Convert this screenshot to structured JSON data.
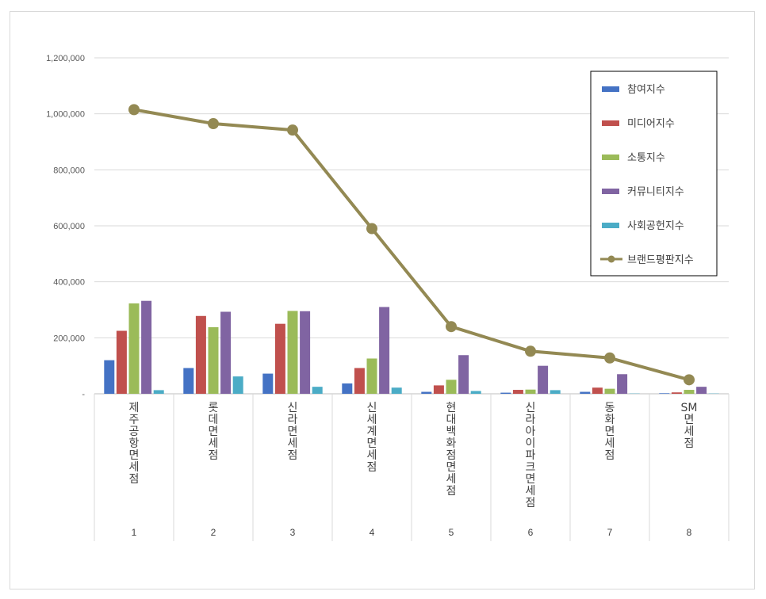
{
  "chart_data": {
    "type": "bar",
    "title": "",
    "xlabel": "",
    "ylabel": "",
    "ylim": [
      0,
      1200000
    ],
    "yticks": [
      {
        "value": 0,
        "label": "-"
      },
      {
        "value": 200000,
        "label": "200,000"
      },
      {
        "value": 400000,
        "label": "400,000"
      },
      {
        "value": 600000,
        "label": "600,000"
      },
      {
        "value": 800000,
        "label": "800,000"
      },
      {
        "value": 1000000,
        "label": "1,000,000"
      },
      {
        "value": 1200000,
        "label": "1,200,000"
      }
    ],
    "grid": true,
    "legend_position": "top-right",
    "ranks": [
      "1",
      "2",
      "3",
      "4",
      "5",
      "6",
      "7",
      "8"
    ],
    "categories": [
      "제주공항면세점",
      "롯데면세점",
      "신라면세점",
      "신세계면세점",
      "현대백화점면세점",
      "신라아이파크면세점",
      "동화면세점",
      "SM면세점"
    ],
    "series": [
      {
        "name": "참여지수",
        "type": "bar",
        "color": "#4472c4",
        "values": [
          120000,
          92000,
          72000,
          37000,
          7000,
          4000,
          7000,
          2000
        ]
      },
      {
        "name": "미디어지수",
        "type": "bar",
        "color": "#c0504d",
        "values": [
          225000,
          278000,
          250000,
          92000,
          30000,
          14000,
          22000,
          5000
        ]
      },
      {
        "name": "소통지수",
        "type": "bar",
        "color": "#9bbb59",
        "values": [
          323000,
          238000,
          296000,
          126000,
          50000,
          15000,
          18000,
          14000
        ]
      },
      {
        "name": "커뮤니티지수",
        "type": "bar",
        "color": "#8064a2",
        "values": [
          332000,
          293000,
          295000,
          310000,
          138000,
          100000,
          70000,
          25000
        ]
      },
      {
        "name": "사회공헌지수",
        "type": "bar",
        "color": "#4bacc6",
        "values": [
          13000,
          62000,
          25000,
          22000,
          10000,
          13000,
          1000,
          1000
        ]
      },
      {
        "name": "브랜드평판지수",
        "type": "line",
        "color": "#938953",
        "values": [
          1015000,
          965000,
          942000,
          590000,
          240000,
          152000,
          128000,
          50000
        ]
      }
    ]
  }
}
